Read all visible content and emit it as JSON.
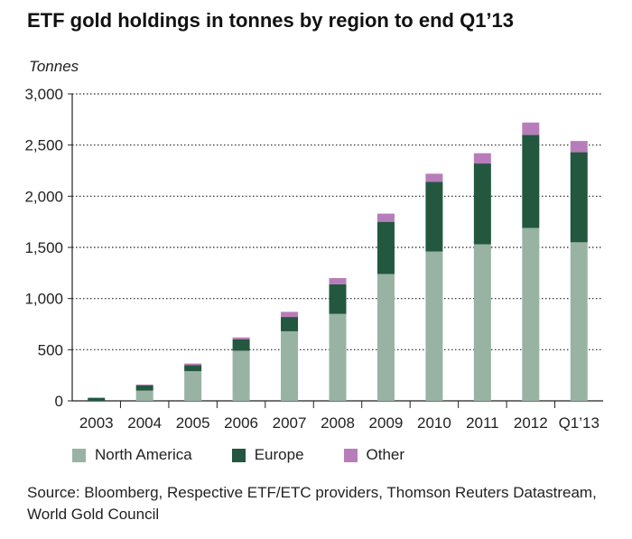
{
  "colors": {
    "north_america": "#98b3a3",
    "europe": "#23573f",
    "other": "#b77dba"
  },
  "chart_data": {
    "type": "bar",
    "stacked": true,
    "title": "ETF gold holdings in tonnes by region to end Q1’13",
    "ylabel": "Tonnes",
    "xlabel": "",
    "ylim": [
      0,
      3000
    ],
    "yticks": [
      "0",
      "500",
      "1,000",
      "1,500",
      "2,000",
      "2,500",
      "3,000"
    ],
    "grid": "horizontal dotted",
    "legend_position": "bottom",
    "categories": [
      "2003",
      "2004",
      "2005",
      "2006",
      "2007",
      "2008",
      "2009",
      "2010",
      "2011",
      "2012",
      "Q1’13"
    ],
    "series": [
      {
        "name": "North America",
        "values": [
          0,
          100,
          290,
          490,
          680,
          850,
          1240,
          1460,
          1530,
          1690,
          1550
        ]
      },
      {
        "name": "Europe",
        "values": [
          30,
          50,
          60,
          110,
          140,
          290,
          510,
          680,
          790,
          910,
          880
        ]
      },
      {
        "name": "Other",
        "values": [
          0,
          10,
          15,
          20,
          50,
          60,
          80,
          80,
          100,
          120,
          110
        ]
      }
    ]
  },
  "source": "Source: Bloomberg, Respective ETF/ETC providers, Thomson Reuters Datastream, World Gold Council"
}
